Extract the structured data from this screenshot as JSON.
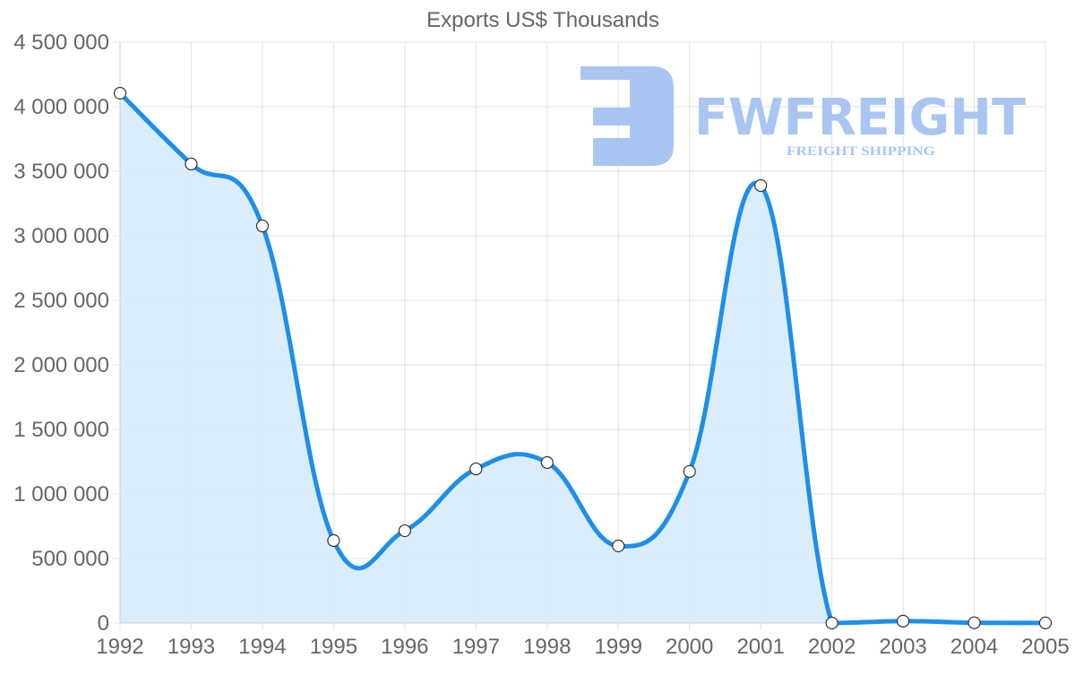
{
  "chart_data": {
    "type": "line",
    "title": "Exports US$ Thousands",
    "xlabel": "",
    "ylabel": "",
    "categories": [
      "1992",
      "1993",
      "1994",
      "1995",
      "1996",
      "1997",
      "1998",
      "1999",
      "2000",
      "2001",
      "2002",
      "2003",
      "2004",
      "2005"
    ],
    "series": [
      {
        "name": "Exports US$ Thousands",
        "values": [
          4104000,
          3556000,
          3076000,
          639000,
          715000,
          1194000,
          1243000,
          597000,
          1174000,
          3389000,
          0,
          15000,
          2000,
          1000
        ],
        "color": "#1e8fe8",
        "fill": "#d9ecfb",
        "filled": true
      }
    ],
    "ylim": [
      0,
      4500000
    ],
    "yticks": [
      0,
      500000,
      1000000,
      1500000,
      2000000,
      2500000,
      3000000,
      3500000,
      4000000,
      4500000
    ],
    "ytick_labels": [
      "0",
      "500 000",
      "1 000 000",
      "1 500 000",
      "2 000 000",
      "2 500 000",
      "3 000 000",
      "3 500 000",
      "4 000 000",
      "4 500 000"
    ],
    "grid": true,
    "legend": "none"
  },
  "watermark": {
    "brand": "FWFREIGHT",
    "tagline": "FREIGHT SHIPPING",
    "color": "#a9c5f2"
  }
}
